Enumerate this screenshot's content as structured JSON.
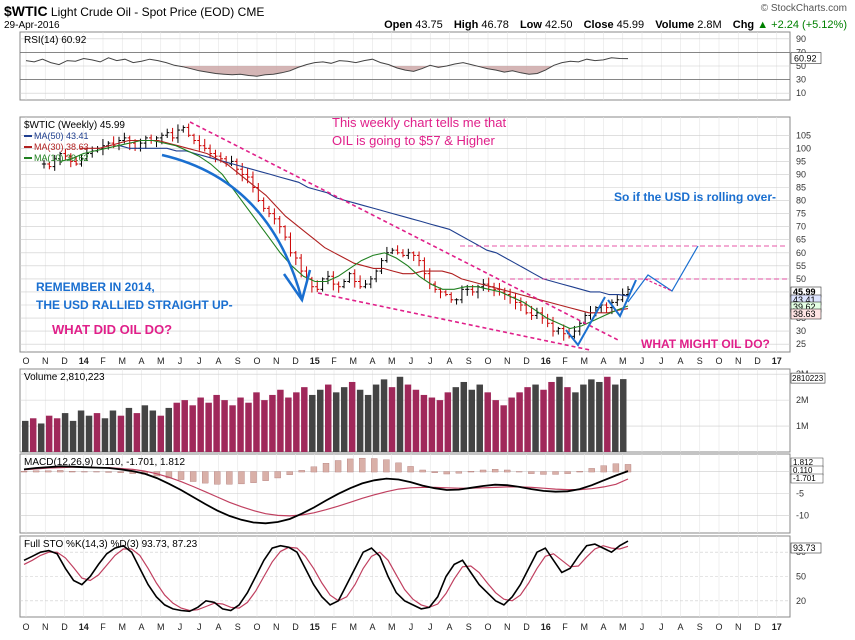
{
  "header": {
    "symbol": "$WTIC",
    "name": "Light Crude Oil - Spot Price (EOD)",
    "exchange": "CME",
    "date": "29-Apr-2016",
    "open_label": "Open",
    "open": "43.75",
    "high_label": "High",
    "high": "46.78",
    "low_label": "Low",
    "low": "42.50",
    "close_label": "Close",
    "close": "45.99",
    "volume_label": "Volume",
    "volume": "2.8M",
    "chg_label": "Chg",
    "chg": "+2.24 (+5.12%)",
    "chg_arrow": "▲",
    "brand": "© StockCharts.com"
  },
  "colors": {
    "up": "#000000",
    "down": "#cc0000",
    "ma50": "#1f3f8f",
    "ma30": "#b02020",
    "ma10": "#208020",
    "annotation_pink": "#e0208a",
    "annotation_blue": "#1a6fd0",
    "vol_up": "#444444",
    "vol_down": "#a0285a",
    "macd": "#000000",
    "signal": "#c04060",
    "stoK": "#000000",
    "stoD": "#c04060"
  },
  "chart_data": [
    {
      "type": "line",
      "panel": "rsi",
      "label": "RSI(14) 60.92",
      "last_value": "60.92",
      "y_ticks": [
        "90",
        "70",
        "50",
        "30",
        "10"
      ],
      "ylim": [
        0,
        100
      ],
      "values": [
        58,
        56,
        60,
        55,
        52,
        58,
        57,
        61,
        59,
        56,
        62,
        58,
        60,
        55,
        57,
        60,
        58,
        55,
        51,
        49,
        46,
        43,
        41,
        39,
        38,
        37,
        38,
        36,
        35,
        37,
        38,
        40,
        43,
        48,
        52,
        55,
        56,
        54,
        58,
        57,
        55,
        58,
        60,
        55,
        52,
        47,
        44,
        42,
        46,
        51,
        48,
        50,
        53,
        55,
        52,
        49,
        46,
        44,
        41,
        43,
        40,
        38,
        39,
        44,
        51,
        55,
        57,
        56,
        60,
        58,
        59,
        62,
        61,
        60.92
      ]
    },
    {
      "type": "candlestick",
      "panel": "price",
      "label": "$WTIC (Weekly) 45.99",
      "x_ticks": [
        "O",
        "N",
        "D",
        "14",
        "F",
        "M",
        "A",
        "M",
        "J",
        "J",
        "A",
        "S",
        "O",
        "N",
        "D",
        "15",
        "F",
        "M",
        "A",
        "M",
        "J",
        "J",
        "A",
        "S",
        "O",
        "N",
        "D",
        "16",
        "F",
        "M",
        "A",
        "M",
        "J",
        "J",
        "A",
        "S",
        "O",
        "N",
        "D",
        "17"
      ],
      "y_ticks": [
        "105",
        "100",
        "95",
        "90",
        "85",
        "80",
        "75",
        "70",
        "65",
        "60",
        "55",
        "50",
        "45",
        "40",
        "35",
        "30",
        "25"
      ],
      "ylim": [
        22,
        112
      ],
      "y_scale": "linear",
      "right_labels": [
        "45.99",
        "43.41",
        "39.62",
        "38.63"
      ],
      "ma_legend": [
        "MA(50) 43.41",
        "MA(30) 38.63",
        "MA(10) 39.62"
      ],
      "closes": [
        94,
        93,
        96,
        98,
        97,
        95,
        94,
        96,
        98,
        99,
        100,
        101,
        102,
        101,
        103,
        104,
        102,
        100,
        102,
        104,
        103,
        104,
        105,
        106,
        104,
        107,
        108,
        105,
        103,
        101,
        100,
        98,
        97,
        96,
        94,
        95,
        92,
        90,
        89,
        85,
        80,
        77,
        75,
        73,
        70,
        66,
        60,
        58,
        53,
        50,
        47,
        46,
        50,
        51,
        48,
        47,
        49,
        52,
        49,
        47,
        48,
        50,
        53,
        57,
        60,
        61,
        60,
        59,
        60,
        59,
        57,
        52,
        48,
        46,
        45,
        44,
        42,
        42,
        46,
        46,
        45,
        47,
        48,
        47,
        46,
        45,
        44,
        43,
        41,
        40,
        37,
        36,
        37,
        35,
        33,
        30,
        31,
        29,
        28,
        30,
        33,
        36,
        37,
        39,
        40,
        39,
        41,
        42,
        44,
        45.99
      ],
      "ma50": [
        101,
        100,
        100,
        100,
        100,
        100,
        99,
        99,
        98,
        97,
        96,
        95,
        94,
        93,
        92,
        91,
        90,
        89,
        88,
        87,
        85,
        84,
        83,
        81,
        80,
        79,
        78,
        77,
        76,
        75,
        74,
        73,
        72,
        71,
        70,
        69,
        67,
        65,
        63,
        61,
        60,
        58,
        56,
        54,
        52,
        50,
        49,
        48,
        47,
        46,
        45,
        45,
        44,
        44,
        43.41
      ],
      "ma30": [
        100,
        100,
        100,
        101,
        102,
        103,
        103,
        103,
        103,
        102,
        101,
        100,
        99,
        98,
        96,
        94,
        91,
        88,
        85,
        82,
        78,
        74,
        71,
        68,
        65,
        62,
        60,
        58,
        56,
        55,
        54,
        54,
        53,
        52,
        52,
        53,
        53,
        53,
        52,
        50,
        49,
        48,
        47,
        46,
        45,
        44,
        43,
        42,
        41,
        40,
        39,
        38,
        37,
        37,
        37,
        38,
        38.63
      ],
      "ma10": [
        95,
        96,
        98,
        99,
        100,
        101,
        102,
        103,
        103,
        102,
        101,
        99,
        97,
        94,
        90,
        84,
        78,
        72,
        66,
        60,
        55,
        51,
        49,
        49,
        51,
        54,
        57,
        59,
        60,
        58,
        55,
        51,
        48,
        46,
        46,
        47,
        47,
        46,
        45,
        43,
        41,
        38,
        35,
        33,
        31,
        32,
        34,
        36,
        38,
        39.62
      ]
    },
    {
      "type": "bar",
      "panel": "volume",
      "label": "Volume 2,810,223",
      "last_value": "2810223",
      "y_ticks": [
        "3M",
        "2M",
        "1M"
      ],
      "ylim": [
        0,
        3200000
      ],
      "values": [
        1200000,
        1300000,
        1100000,
        1400000,
        1300000,
        1500000,
        1200000,
        1600000,
        1400000,
        1500000,
        1300000,
        1600000,
        1400000,
        1700000,
        1500000,
        1800000,
        1600000,
        1400000,
        1700000,
        1900000,
        2000000,
        1800000,
        2100000,
        1900000,
        2200000,
        2000000,
        1800000,
        2100000,
        1900000,
        2300000,
        2000000,
        2200000,
        2400000,
        2100000,
        2300000,
        2500000,
        2200000,
        2400000,
        2600000,
        2300000,
        2500000,
        2700000,
        2400000,
        2200000,
        2600000,
        2800000,
        2500000,
        2900000,
        2600000,
        2400000,
        2200000,
        2100000,
        2000000,
        2300000,
        2500000,
        2700000,
        2400000,
        2600000,
        2300000,
        2000000,
        1800000,
        2100000,
        2300000,
        2500000,
        2600000,
        2400000,
        2700000,
        2900000,
        2500000,
        2300000,
        2600000,
        2800000,
        2700000,
        2900000,
        2600000,
        2810223
      ],
      "right_label": "2810223"
    },
    {
      "type": "line",
      "panel": "macd",
      "label": "MACD(12,26,9) 0.110, -1.701, 1.812",
      "y_ticks": [
        "0",
        "-5",
        "-10"
      ],
      "ylim": [
        -14,
        4
      ],
      "macd": [
        0.5,
        0.8,
        1.0,
        1.2,
        1.1,
        1.0,
        0.9,
        0.8,
        0.5,
        0.1,
        -0.5,
        -1.5,
        -2.8,
        -4.2,
        -5.8,
        -7.4,
        -8.9,
        -10.1,
        -11.0,
        -11.6,
        -11.8,
        -11.5,
        -10.8,
        -9.6,
        -8.2,
        -6.6,
        -5.1,
        -3.8,
        -2.7,
        -2.0,
        -1.6,
        -1.8,
        -2.4,
        -3.2,
        -3.8,
        -4.2,
        -4.1,
        -3.7,
        -3.3,
        -3.0,
        -3.1,
        -3.5,
        -4.0,
        -4.4,
        -4.6,
        -4.5,
        -4.0,
        -3.1,
        -2.0,
        -0.9,
        0.11
      ],
      "signal": [
        0.4,
        0.6,
        0.8,
        0.9,
        1.0,
        1.0,
        0.9,
        0.9,
        0.7,
        0.5,
        0.1,
        -0.5,
        -1.3,
        -2.3,
        -3.4,
        -4.6,
        -5.8,
        -7.0,
        -8.0,
        -8.9,
        -9.6,
        -10.0,
        -10.1,
        -9.9,
        -9.4,
        -8.7,
        -7.9,
        -7.0,
        -6.1,
        -5.3,
        -4.6,
        -4.0,
        -3.7,
        -3.6,
        -3.6,
        -3.7,
        -3.8,
        -3.8,
        -3.7,
        -3.6,
        -3.5,
        -3.5,
        -3.6,
        -3.8,
        -4.0,
        -4.1,
        -4.1,
        -3.9,
        -3.5,
        -2.9,
        -1.701
      ],
      "histogram_last": "1.812",
      "right_labels": [
        "1.812",
        "0.110",
        "-1.701"
      ]
    },
    {
      "type": "line",
      "panel": "stochastic",
      "label": "Full STO %K(14,3) %D(3) 93.73, 87.23",
      "y_ticks": [
        "80",
        "50",
        "20"
      ],
      "ylim": [
        0,
        100
      ],
      "stoK": [
        70,
        75,
        80,
        82,
        78,
        60,
        45,
        40,
        50,
        65,
        78,
        85,
        88,
        80,
        60,
        40,
        25,
        15,
        10,
        8,
        7,
        12,
        20,
        18,
        10,
        8,
        15,
        30,
        50,
        70,
        85,
        88,
        86,
        80,
        60,
        40,
        25,
        15,
        20,
        40,
        60,
        80,
        85,
        75,
        50,
        30,
        20,
        15,
        10,
        12,
        25,
        50,
        65,
        70,
        55,
        40,
        30,
        20,
        15,
        25,
        40,
        60,
        80,
        85,
        70,
        55,
        60,
        75,
        88,
        90,
        85,
        80,
        88,
        93.73
      ],
      "stoD": [
        65,
        70,
        76,
        80,
        80,
        73,
        61,
        48,
        45,
        52,
        64,
        76,
        84,
        84,
        76,
        60,
        42,
        27,
        17,
        11,
        8,
        9,
        13,
        17,
        16,
        12,
        11,
        18,
        32,
        50,
        68,
        81,
        86,
        85,
        75,
        60,
        42,
        27,
        20,
        25,
        40,
        60,
        75,
        80,
        70,
        52,
        34,
        22,
        15,
        12,
        16,
        29,
        47,
        62,
        63,
        55,
        42,
        30,
        22,
        20,
        27,
        42,
        60,
        75,
        78,
        70,
        62,
        63,
        74,
        84,
        88,
        85,
        84,
        87.23
      ],
      "right_labels": [
        "93.73",
        "87.23"
      ]
    }
  ],
  "annotations": {
    "weekly_note_line1": "This weekly chart tells me that",
    "weekly_note_line2": "OIL is going to $57 & Higher",
    "usd_rolling": "So if the USD is rolling over-",
    "remember_line1": "REMEMBER IN 2014,",
    "remember_line2": "THE USD RALLIED STRAIGHT UP-",
    "what_did": "WHAT DID OIL DO?",
    "what_might": "WHAT MIGHT OIL DO?"
  }
}
